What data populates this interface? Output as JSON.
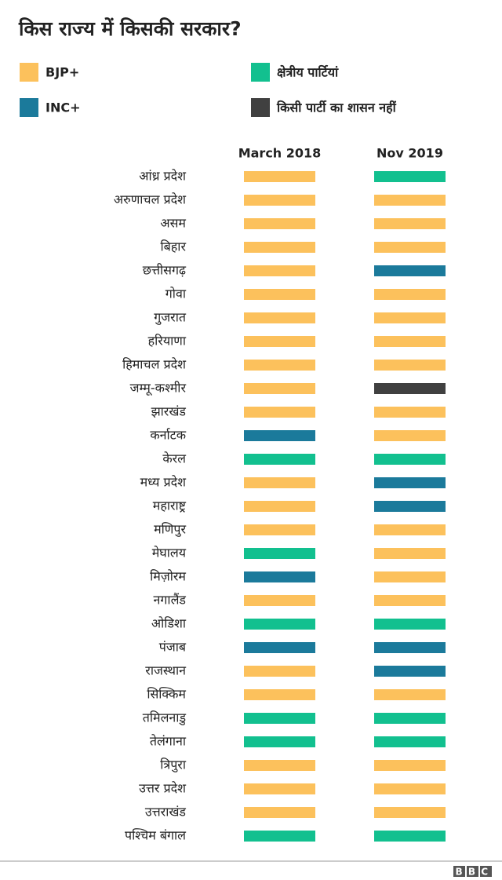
{
  "header": {
    "title": "किस राज्य में किसकी सरकार?"
  },
  "legend": [
    {
      "label": "BJP+",
      "color": "#fcc15c"
    },
    {
      "label": "क्षेत्रीय पार्टियां",
      "color": "#12c08f"
    },
    {
      "label": "INC+",
      "color": "#1b7a9b"
    },
    {
      "label": "किसी पार्टी का शासन नहीं",
      "color": "#404040"
    }
  ],
  "table": {
    "columns": [
      "March 2018",
      "Nov 2019"
    ],
    "rows": [
      [
        "आंध्र प्रदेश",
        "BJP+",
        "क्षेत्रीय पार्टियां"
      ],
      [
        "अरुणाचल प्रदेश",
        "BJP+",
        "BJP+"
      ],
      [
        "असम",
        "BJP+",
        "BJP+"
      ],
      [
        "बिहार",
        "BJP+",
        "BJP+"
      ],
      [
        "छत्तीसगढ़",
        "BJP+",
        "INC+"
      ],
      [
        "गोवा",
        "BJP+",
        "BJP+"
      ],
      [
        "गुजरात",
        "BJP+",
        "BJP+"
      ],
      [
        "हरियाणा",
        "BJP+",
        "BJP+"
      ],
      [
        "हिमाचल प्रदेश",
        "BJP+",
        "BJP+"
      ],
      [
        "जम्मू-कश्मीर",
        "BJP+",
        "किसी पार्टी का शासन नहीं"
      ],
      [
        "झारखंड",
        "BJP+",
        "BJP+"
      ],
      [
        "कर्नाटक",
        "INC+",
        "BJP+"
      ],
      [
        "केरल",
        "क्षेत्रीय पार्टियां",
        "क्षेत्रीय पार्टियां"
      ],
      [
        "मध्य प्रदेश",
        "BJP+",
        "INC+"
      ],
      [
        "महाराष्ट्र",
        "BJP+",
        "INC+"
      ],
      [
        "मणिपुर",
        "BJP+",
        "BJP+"
      ],
      [
        "मेघालय",
        "क्षेत्रीय पार्टियां",
        "BJP+"
      ],
      [
        "मिज़ोरम",
        "INC+",
        "BJP+"
      ],
      [
        "नगालैंड",
        "BJP+",
        "BJP+"
      ],
      [
        "ओडिशा",
        "क्षेत्रीय पार्टियां",
        "क्षेत्रीय पार्टियां"
      ],
      [
        "पंजाब",
        "INC+",
        "INC+"
      ],
      [
        "राजस्थान",
        "BJP+",
        "INC+"
      ],
      [
        "सिक्किम",
        "BJP+",
        "BJP+"
      ],
      [
        "तमिलनाडु",
        "क्षेत्रीय पार्टियां",
        "क्षेत्रीय पार्टियां"
      ],
      [
        "तेलंगाना",
        "क्षेत्रीय पार्टियां",
        "क्षेत्रीय पार्टियां"
      ],
      [
        "त्रिपुरा",
        "BJP+",
        "BJP+"
      ],
      [
        "उत्तर प्रदेश",
        "BJP+",
        "BJP+"
      ],
      [
        "उत्तराखंड",
        "BJP+",
        "BJP+"
      ],
      [
        "पश्चिम बंगाल",
        "क्षेत्रीय पार्टियां",
        "क्षेत्रीय पार्टियां"
      ]
    ]
  },
  "footer": {
    "logo": "BBC"
  }
}
